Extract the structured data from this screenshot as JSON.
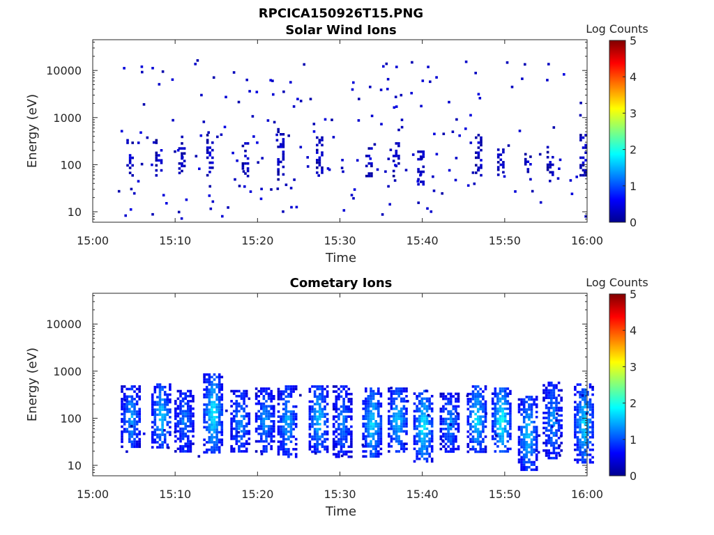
{
  "figure_title": "RPCICA150926T15.PNG",
  "chart_data": [
    {
      "type": "heatmap",
      "title": "Solar Wind Ions",
      "xlabel": "Time",
      "ylabel": "Energy (eV)",
      "x_ticks": [
        "15:00",
        "15:10",
        "15:20",
        "15:30",
        "15:40",
        "15:50",
        "16:00"
      ],
      "y_ticks": [
        "10",
        "100",
        "1000",
        "10000"
      ],
      "y_scale": "log",
      "ylim": [
        6,
        45000
      ],
      "xlim_minutes": [
        0,
        60
      ],
      "colorbar": {
        "label": "Log Counts",
        "ticks": [
          "0",
          "1",
          "2",
          "3",
          "4",
          "5"
        ],
        "range": [
          0,
          5
        ],
        "colormap": "jet"
      },
      "bursts": [
        {
          "t": 4.5,
          "e0": 60,
          "e1": 350,
          "v": 0.3
        },
        {
          "t": 8.0,
          "e0": 60,
          "e1": 350,
          "v": 0.3
        },
        {
          "t": 10.8,
          "e0": 70,
          "e1": 300,
          "v": 0.2
        },
        {
          "t": 14.2,
          "e0": 60,
          "e1": 450,
          "v": 0.35
        },
        {
          "t": 18.5,
          "e0": 60,
          "e1": 300,
          "v": 0.2
        },
        {
          "t": 22.8,
          "e0": 50,
          "e1": 600,
          "v": 0.3
        },
        {
          "t": 27.5,
          "e0": 70,
          "e1": 400,
          "v": 0.3
        },
        {
          "t": 33.5,
          "e0": 60,
          "e1": 300,
          "v": 0.25
        },
        {
          "t": 36.8,
          "e0": 60,
          "e1": 300,
          "v": 0.3
        },
        {
          "t": 39.8,
          "e0": 40,
          "e1": 200,
          "v": 0.35
        },
        {
          "t": 46.8,
          "e0": 60,
          "e1": 450,
          "v": 0.3
        },
        {
          "t": 49.5,
          "e0": 60,
          "e1": 250,
          "v": 0.3
        },
        {
          "t": 52.8,
          "e0": 50,
          "e1": 200,
          "v": 0.3
        },
        {
          "t": 55.5,
          "e0": 60,
          "e1": 250,
          "v": 0.2
        },
        {
          "t": 59.5,
          "e0": 60,
          "e1": 450,
          "v": 0.35
        }
      ],
      "scatter_count": 210,
      "seed": 7
    },
    {
      "type": "heatmap",
      "title": "Cometary Ions",
      "xlabel": "Time",
      "ylabel": "Energy (eV)",
      "x_ticks": [
        "15:00",
        "15:10",
        "15:20",
        "15:30",
        "15:40",
        "15:50",
        "16:00"
      ],
      "y_ticks": [
        "10",
        "100",
        "1000",
        "10000"
      ],
      "y_scale": "log",
      "ylim": [
        6,
        45000
      ],
      "xlim_minutes": [
        0,
        60
      ],
      "colorbar": {
        "label": "Log Counts",
        "ticks": [
          "0",
          "1",
          "2",
          "3",
          "4",
          "5"
        ],
        "range": [
          0,
          5
        ],
        "colormap": "jet"
      },
      "bursts": [
        {
          "t": 4.5,
          "e0": 25,
          "e1": 500,
          "v": 1.4
        },
        {
          "t": 8.2,
          "e0": 25,
          "e1": 550,
          "v": 1.6
        },
        {
          "t": 11.0,
          "e0": 20,
          "e1": 400,
          "v": 1.2
        },
        {
          "t": 14.5,
          "e0": 20,
          "e1": 900,
          "v": 1.8
        },
        {
          "t": 17.8,
          "e0": 20,
          "e1": 400,
          "v": 1.3
        },
        {
          "t": 20.8,
          "e0": 20,
          "e1": 450,
          "v": 1.3
        },
        {
          "t": 23.5,
          "e0": 15,
          "e1": 500,
          "v": 1.4
        },
        {
          "t": 27.3,
          "e0": 20,
          "e1": 500,
          "v": 1.6
        },
        {
          "t": 30.2,
          "e0": 15,
          "e1": 500,
          "v": 1.2
        },
        {
          "t": 33.8,
          "e0": 15,
          "e1": 450,
          "v": 1.7
        },
        {
          "t": 36.9,
          "e0": 20,
          "e1": 450,
          "v": 1.6
        },
        {
          "t": 40.0,
          "e0": 12,
          "e1": 400,
          "v": 1.8
        },
        {
          "t": 43.2,
          "e0": 20,
          "e1": 350,
          "v": 1.3
        },
        {
          "t": 46.5,
          "e0": 20,
          "e1": 500,
          "v": 1.7
        },
        {
          "t": 49.5,
          "e0": 20,
          "e1": 450,
          "v": 1.9
        },
        {
          "t": 52.7,
          "e0": 8,
          "e1": 300,
          "v": 1.6
        },
        {
          "t": 55.7,
          "e0": 15,
          "e1": 600,
          "v": 1.3
        },
        {
          "t": 59.5,
          "e0": 12,
          "e1": 550,
          "v": 1.7
        }
      ],
      "scatter_count": 40,
      "seed": 11
    }
  ]
}
